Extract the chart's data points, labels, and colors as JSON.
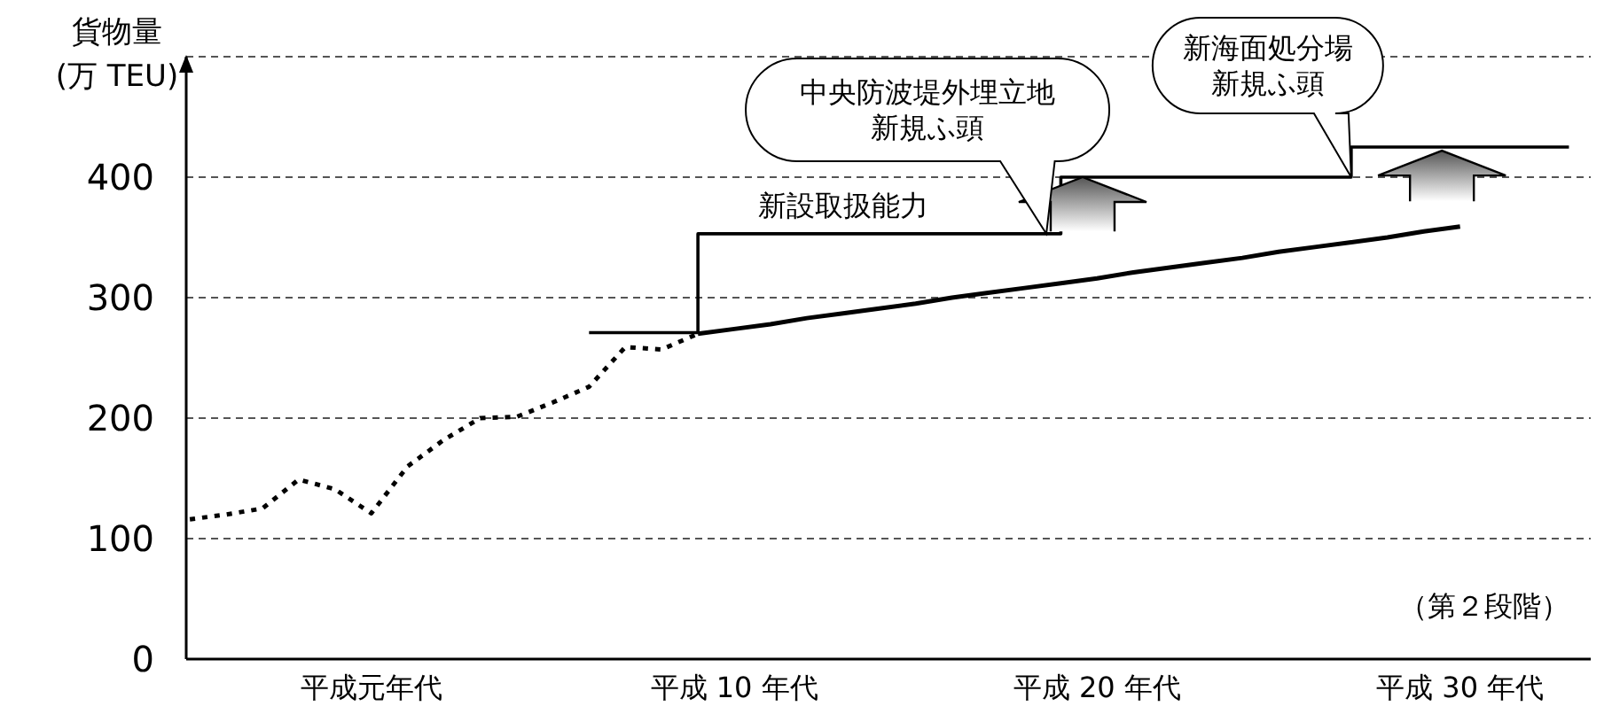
{
  "chart_data": {
    "type": "line",
    "ylabel": "貨物量\n(万 TEU)",
    "categories": [
      null,
      null,
      null,
      null,
      null,
      "平成元年代",
      null,
      null,
      null,
      null,
      null,
      null,
      null,
      null,
      null,
      "平成 10 年代",
      null,
      null,
      null,
      null,
      null,
      null,
      null,
      null,
      null,
      "平成 20 年代",
      null,
      null,
      null,
      null,
      null,
      null,
      null,
      null,
      null,
      "平成 30 年代",
      null,
      null,
      null,
      null
    ],
    "ylim": [
      0,
      500
    ],
    "yticks": [
      0,
      100,
      200,
      300,
      400
    ],
    "grid": "y",
    "marker": "none",
    "series": [
      {
        "color": "#000000",
        "line_style": "dotted",
        "values": [
          116,
          120,
          125,
          149,
          141,
          121,
          160,
          182,
          200,
          201,
          213,
          226,
          259,
          257,
          270,
          null,
          null,
          null,
          null,
          null,
          null,
          null,
          null,
          null,
          null,
          null,
          null,
          null,
          null,
          null,
          null,
          null,
          null,
          null,
          null,
          null,
          null,
          null,
          null,
          null
        ]
      },
      {
        "color": "#000000",
        "line_style": "solid",
        "values": [
          null,
          null,
          null,
          null,
          null,
          null,
          null,
          null,
          null,
          null,
          null,
          null,
          null,
          null,
          270,
          274,
          278,
          283,
          287,
          291,
          295,
          300,
          304,
          308,
          312,
          316,
          321,
          325,
          329,
          333,
          338,
          342,
          346,
          350,
          355,
          359,
          null,
          null,
          null,
          null
        ]
      },
      {
        "type": "step",
        "name": "新設取扱能力",
        "color": "#000000",
        "line_style": "solid",
        "values": [
          null,
          null,
          null,
          null,
          null,
          null,
          null,
          null,
          null,
          null,
          null,
          271,
          271,
          271,
          353,
          353,
          353,
          353,
          353,
          353,
          353,
          353,
          353,
          353,
          400,
          400,
          400,
          400,
          400,
          400,
          400,
          400,
          425,
          425,
          425,
          425,
          425,
          425,
          425,
          null
        ]
      }
    ],
    "annotations": [
      "中央防波堤外埋立地新規ふ頭",
      "新海面処分場新規ふ頭",
      "（第２段階）"
    ]
  }
}
